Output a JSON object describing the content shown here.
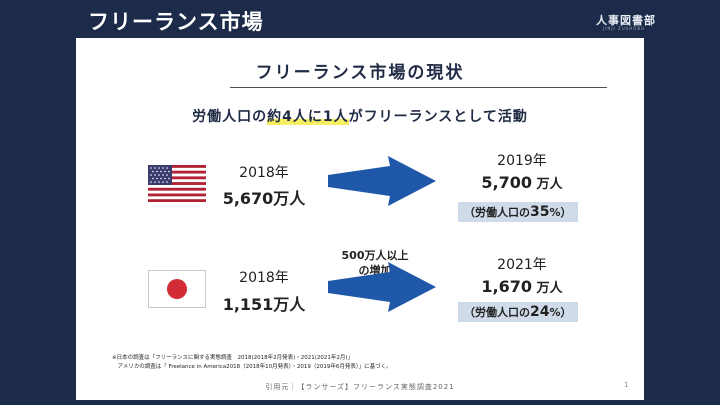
{
  "header": {
    "title": "フリーランス市場",
    "logo": "人事図書部",
    "logo_sub": "JINJI ZUSHOBU"
  },
  "slide": {
    "title": "フリーランス市場の現状",
    "subtitle": {
      "pre": "労働人口の",
      "highlight": "約4人に1人",
      "post": "がフリーランスとして活動"
    },
    "usa": {
      "flag": "usa-flag",
      "from_year": "2018年",
      "from_value": "5,670万人",
      "to_year": "2019年",
      "to_value": "5,700",
      "to_unit": " 万人",
      "share_pre": "（労働人口の",
      "share_value": "35",
      "share_post": "%）"
    },
    "japan": {
      "flag": "japan-flag",
      "from_year": "2018年",
      "from_value": "1,151万人",
      "to_year": "2021年",
      "to_value": "1,670",
      "to_unit": " 万人",
      "share_pre": "（労働人口の",
      "share_value": "24",
      "share_post": "%）",
      "arrow_note_line1": "500万人以上",
      "arrow_note_line2": "の増加"
    },
    "footnote_line1": "※日本の調査は「フリーランスに関する実態調査　2018(2018年2月発表)・2021(2021年2月)」",
    "footnote_line2": "　アメリカの調査は「 Freelance in America2018（2018年10月発表）・2019（2019年6月発表）」に基づく。",
    "source": "引用元｜【ランサーズ】フリーランス実態調査2021",
    "page_number": "1"
  },
  "colors": {
    "navy": "#1c2b4a",
    "arrow": "#1f58a8",
    "highlight": "#f6ee62",
    "badge": "#cfdbe9",
    "japan_red": "#d22c35"
  }
}
